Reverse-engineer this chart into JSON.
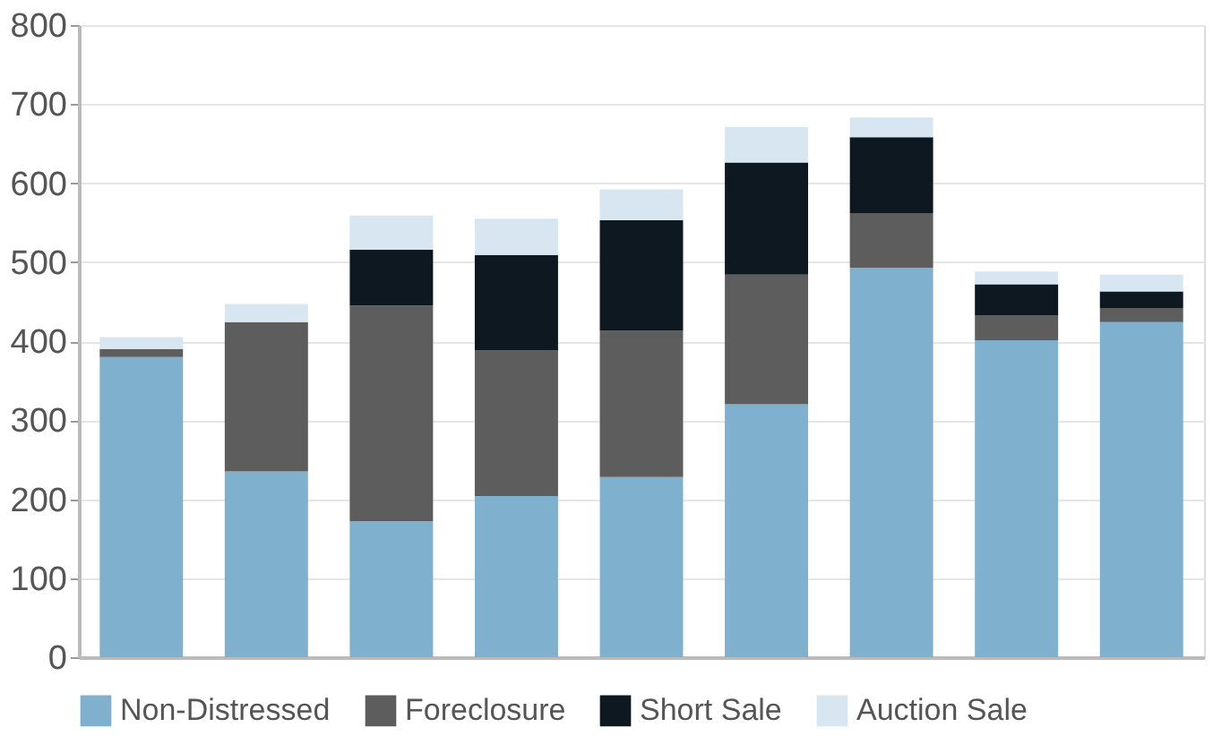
{
  "chart_data": {
    "type": "bar",
    "stacked": true,
    "categories": [
      null,
      null,
      null,
      null,
      null,
      null,
      null,
      null,
      null
    ],
    "series": [
      {
        "name": "Non-Distressed",
        "color": "#7fb0ce",
        "values": [
          380,
          235,
          172,
          204,
          228,
          320,
          493,
          401,
          424
        ]
      },
      {
        "name": "Foreclosure",
        "color": "#5d5d5d",
        "values": [
          10,
          189,
          273,
          184,
          185,
          164,
          69,
          32,
          18
        ]
      },
      {
        "name": "Short Sale",
        "color": "#0e1821",
        "values": [
          0,
          0,
          71,
          121,
          140,
          142,
          96,
          39,
          21
        ]
      },
      {
        "name": "Auction Sale",
        "color": "#d8e6f1",
        "values": [
          15,
          23,
          43,
          46,
          39,
          45,
          25,
          16,
          21
        ]
      }
    ],
    "ylim": [
      0,
      800
    ],
    "yticks": [
      0,
      100,
      200,
      300,
      400,
      500,
      600,
      700,
      800
    ],
    "grid": "y",
    "legend": "bottom"
  }
}
